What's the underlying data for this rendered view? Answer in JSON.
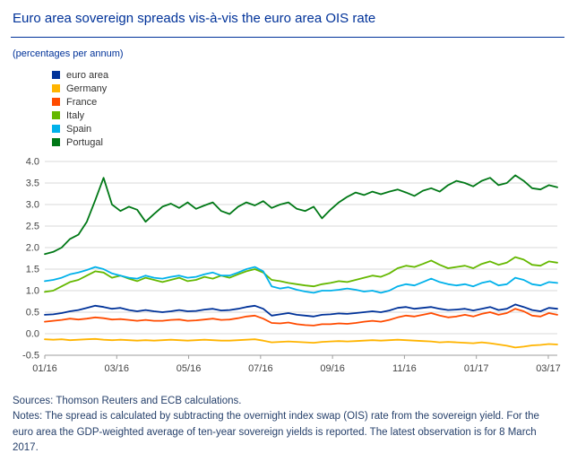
{
  "header": {
    "title": "Euro area sovereign spreads vis-à-vis the euro area OIS rate",
    "subtitle": "(percentages per annum)"
  },
  "footer": {
    "sources": "Sources: Thomson Reuters and ECB calculations.",
    "notes": "Notes: The spread is calculated by subtracting the overnight index swap (OIS) rate from the sovereign yield. For the euro area the GDP-weighted average of ten-year sovereign yields is reported. The latest observation is for 8 March 2017."
  },
  "chart_data": {
    "type": "line",
    "title": "Euro area sovereign spreads vis-à-vis the euro area OIS rate",
    "ylabel": "percentages per annum",
    "xlabel": "",
    "grid": true,
    "legend_position": "top-left",
    "ylim": [
      -0.5,
      4.0
    ],
    "ystep": 0.5,
    "x_total_months": 14.25,
    "xticks": [
      {
        "label": "01/16",
        "month": 0
      },
      {
        "label": "03/16",
        "month": 2
      },
      {
        "label": "05/16",
        "month": 4
      },
      {
        "label": "07/16",
        "month": 6
      },
      {
        "label": "09/16",
        "month": 8
      },
      {
        "label": "11/16",
        "month": 10
      },
      {
        "label": "01/17",
        "month": 12
      },
      {
        "label": "03/17",
        "month": 14
      }
    ],
    "series": [
      {
        "name": "euro area",
        "color": "#003299",
        "values": [
          0.44,
          0.45,
          0.48,
          0.52,
          0.55,
          0.6,
          0.65,
          0.62,
          0.58,
          0.6,
          0.55,
          0.52,
          0.55,
          0.52,
          0.5,
          0.52,
          0.55,
          0.52,
          0.53,
          0.56,
          0.58,
          0.54,
          0.55,
          0.58,
          0.62,
          0.65,
          0.58,
          0.42,
          0.45,
          0.48,
          0.44,
          0.42,
          0.4,
          0.44,
          0.45,
          0.47,
          0.46,
          0.48,
          0.5,
          0.52,
          0.5,
          0.54,
          0.6,
          0.62,
          0.58,
          0.6,
          0.62,
          0.58,
          0.55,
          0.56,
          0.58,
          0.54,
          0.58,
          0.62,
          0.55,
          0.58,
          0.68,
          0.62,
          0.55,
          0.52,
          0.6,
          0.58
        ]
      },
      {
        "name": "Germany",
        "color": "#FFB400",
        "values": [
          -0.13,
          -0.14,
          -0.13,
          -0.15,
          -0.14,
          -0.13,
          -0.12,
          -0.14,
          -0.15,
          -0.14,
          -0.15,
          -0.16,
          -0.15,
          -0.16,
          -0.15,
          -0.14,
          -0.15,
          -0.16,
          -0.15,
          -0.14,
          -0.15,
          -0.16,
          -0.16,
          -0.15,
          -0.14,
          -0.13,
          -0.16,
          -0.2,
          -0.19,
          -0.18,
          -0.19,
          -0.2,
          -0.21,
          -0.19,
          -0.18,
          -0.17,
          -0.18,
          -0.17,
          -0.16,
          -0.15,
          -0.16,
          -0.15,
          -0.14,
          -0.15,
          -0.16,
          -0.17,
          -0.18,
          -0.2,
          -0.19,
          -0.2,
          -0.21,
          -0.22,
          -0.2,
          -0.22,
          -0.25,
          -0.28,
          -0.32,
          -0.3,
          -0.27,
          -0.26,
          -0.24,
          -0.25
        ]
      },
      {
        "name": "France",
        "color": "#FF4B00",
        "values": [
          0.28,
          0.3,
          0.32,
          0.35,
          0.33,
          0.35,
          0.38,
          0.36,
          0.33,
          0.34,
          0.32,
          0.3,
          0.32,
          0.3,
          0.3,
          0.32,
          0.33,
          0.3,
          0.31,
          0.33,
          0.35,
          0.32,
          0.33,
          0.36,
          0.4,
          0.42,
          0.35,
          0.25,
          0.24,
          0.26,
          0.22,
          0.2,
          0.19,
          0.22,
          0.22,
          0.24,
          0.23,
          0.25,
          0.28,
          0.3,
          0.28,
          0.32,
          0.38,
          0.42,
          0.4,
          0.44,
          0.48,
          0.42,
          0.38,
          0.4,
          0.44,
          0.4,
          0.46,
          0.5,
          0.44,
          0.48,
          0.58,
          0.52,
          0.42,
          0.4,
          0.48,
          0.44
        ]
      },
      {
        "name": "Italy",
        "color": "#65B800",
        "values": [
          0.97,
          1.0,
          1.1,
          1.2,
          1.25,
          1.35,
          1.45,
          1.42,
          1.3,
          1.35,
          1.28,
          1.22,
          1.3,
          1.25,
          1.2,
          1.25,
          1.3,
          1.22,
          1.25,
          1.32,
          1.28,
          1.35,
          1.3,
          1.38,
          1.45,
          1.5,
          1.42,
          1.25,
          1.22,
          1.18,
          1.15,
          1.12,
          1.1,
          1.15,
          1.18,
          1.22,
          1.2,
          1.25,
          1.3,
          1.35,
          1.32,
          1.4,
          1.52,
          1.58,
          1.55,
          1.62,
          1.7,
          1.6,
          1.52,
          1.55,
          1.58,
          1.52,
          1.62,
          1.68,
          1.6,
          1.65,
          1.78,
          1.72,
          1.6,
          1.58,
          1.68,
          1.65
        ]
      },
      {
        "name": "Spain",
        "color": "#00B1EA",
        "values": [
          1.22,
          1.25,
          1.3,
          1.38,
          1.42,
          1.48,
          1.55,
          1.5,
          1.4,
          1.35,
          1.3,
          1.28,
          1.35,
          1.3,
          1.28,
          1.32,
          1.35,
          1.3,
          1.32,
          1.38,
          1.42,
          1.35,
          1.35,
          1.42,
          1.5,
          1.55,
          1.45,
          1.1,
          1.05,
          1.08,
          1.02,
          0.98,
          0.95,
          1.0,
          1.0,
          1.02,
          1.05,
          1.02,
          0.98,
          1.0,
          0.95,
          1.0,
          1.1,
          1.15,
          1.12,
          1.2,
          1.28,
          1.2,
          1.15,
          1.12,
          1.15,
          1.1,
          1.18,
          1.22,
          1.12,
          1.15,
          1.3,
          1.25,
          1.15,
          1.12,
          1.2,
          1.18
        ]
      },
      {
        "name": "Portugal",
        "color": "#007816",
        "values": [
          1.85,
          1.9,
          2.0,
          2.2,
          2.3,
          2.6,
          3.1,
          3.62,
          3.0,
          2.85,
          2.95,
          2.88,
          2.6,
          2.78,
          2.95,
          3.02,
          2.92,
          3.05,
          2.9,
          2.98,
          3.05,
          2.85,
          2.78,
          2.95,
          3.05,
          2.98,
          3.08,
          2.92,
          3.0,
          3.05,
          2.9,
          2.85,
          2.95,
          2.68,
          2.88,
          3.05,
          3.18,
          3.28,
          3.22,
          3.3,
          3.24,
          3.3,
          3.35,
          3.28,
          3.2,
          3.32,
          3.38,
          3.3,
          3.45,
          3.55,
          3.5,
          3.42,
          3.55,
          3.62,
          3.45,
          3.5,
          3.68,
          3.55,
          3.38,
          3.35,
          3.45,
          3.4
        ]
      }
    ]
  }
}
